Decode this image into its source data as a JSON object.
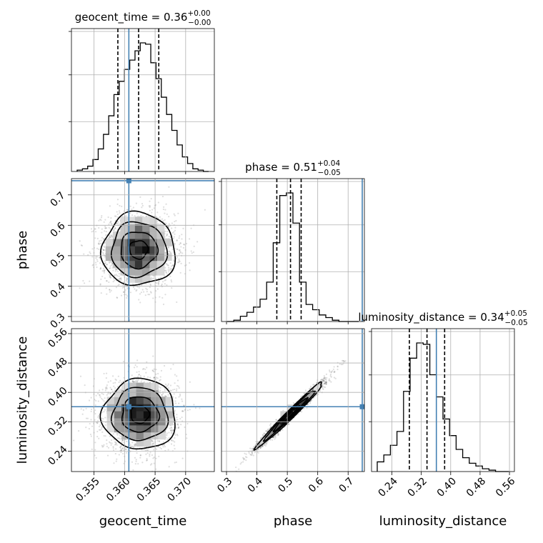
{
  "chart_data": {
    "type": "corner",
    "parameters": [
      "geocent_time",
      "phase",
      "luminosity_distance"
    ],
    "truth_color": "#4682b4",
    "grid": true,
    "truths": {
      "geocent_time": 0.3607,
      "phase": 0.7465,
      "luminosity_distance": 0.361
    },
    "titles": [
      {
        "param": "geocent_time",
        "text": "geocent_time = 0.36",
        "sup": "+0.00",
        "sub": "−0.00"
      },
      {
        "param": "phase",
        "text": "phase = 0.51",
        "sup": "+0.04",
        "sub": "−0.05"
      },
      {
        "param": "luminosity_distance",
        "text": "luminosity_distance = 0.34",
        "sup": "+0.05",
        "sub": "−0.05"
      }
    ],
    "axes": {
      "geocent_time": {
        "range": [
          0.3513,
          0.3747
        ],
        "ticks": [
          0.355,
          0.36,
          0.365,
          0.37
        ],
        "tick_labels": [
          "0.355",
          "0.360",
          "0.365",
          "0.370"
        ],
        "label": "geocent_time"
      },
      "phase": {
        "range": [
          0.2835,
          0.7535
        ],
        "ticks": [
          0.3,
          0.4,
          0.5,
          0.6,
          0.7
        ],
        "tick_labels": [
          "0.3",
          "0.4",
          "0.5",
          "0.6",
          "0.7"
        ],
        "label": "phase"
      },
      "luminosity_distance": {
        "range": [
          0.1845,
          0.5735
        ],
        "ticks": [
          0.24,
          0.32,
          0.4,
          0.48,
          0.56
        ],
        "tick_labels": [
          "0.24",
          "0.32",
          "0.40",
          "0.48",
          "0.56"
        ],
        "label": "luminosity_distance"
      }
    },
    "histograms": {
      "geocent_time": {
        "quantiles": [
          0.3589,
          0.3623,
          0.3656
        ],
        "counts": [
          1,
          2,
          4,
          9,
          17,
          28,
          42,
          58,
          68,
          77,
          84,
          91,
          97,
          96,
          82,
          70,
          56,
          43,
          31,
          20,
          11,
          6,
          2,
          1,
          0
        ]
      },
      "phase": {
        "quantiles": [
          0.4655,
          0.5105,
          0.5455
        ],
        "counts": [
          0,
          1,
          4,
          7,
          11,
          17,
          30,
          60,
          96,
          98,
          75,
          30,
          13,
          9,
          5,
          3,
          1,
          0,
          0,
          0
        ]
      },
      "luminosity_distance": {
        "quantiles": [
          0.2875,
          0.3355,
          0.3835
        ],
        "counts": [
          7,
          12,
          19,
          29,
          58,
          82,
          93,
          92,
          70,
          54,
          38,
          26,
          16,
          10,
          6,
          4,
          2,
          1,
          0,
          0
        ]
      }
    },
    "pairs": [
      {
        "x": "geocent_time",
        "y": "phase",
        "center": [
          0.3623,
          0.52
        ],
        "sigma": [
          0.003,
          0.06
        ],
        "rho": 0.0
      },
      {
        "x": "geocent_time",
        "y": "luminosity_distance",
        "center": [
          0.3625,
          0.34
        ],
        "sigma": [
          0.003,
          0.048
        ],
        "rho": 0.0
      },
      {
        "x": "phase",
        "y": "luminosity_distance",
        "center": [
          0.51,
          0.34
        ],
        "sigma": [
          0.055,
          0.045
        ],
        "rho": 0.985
      }
    ]
  }
}
